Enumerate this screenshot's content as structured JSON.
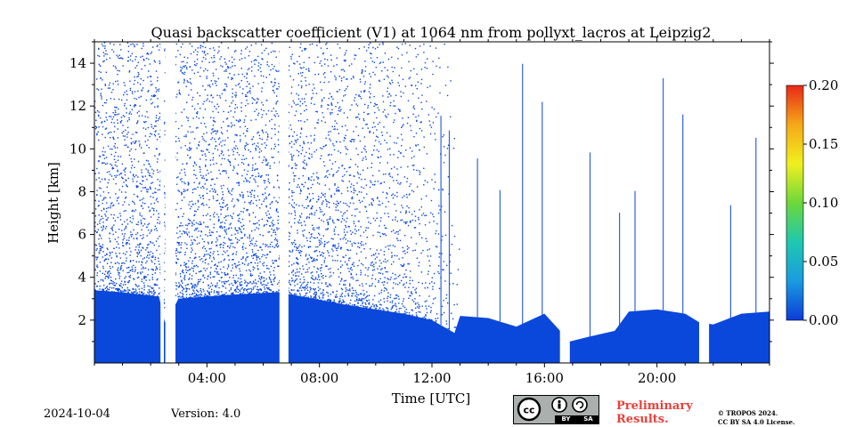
{
  "chart_data": {
    "type": "heatmap",
    "title": "Quasi backscatter coefficient (V1) at 1064 nm from pollyxt_lacros at Leipzig2",
    "xlabel": "Time [UTC]",
    "ylabel": "Height [km]",
    "xlim": [
      0,
      24
    ],
    "ylim": [
      0,
      15
    ],
    "x_ticks": [
      4,
      8,
      12,
      16,
      20
    ],
    "x_tick_labels": [
      "04:00",
      "08:00",
      "12:00",
      "16:00",
      "20:00"
    ],
    "y_ticks": [
      2,
      4,
      6,
      8,
      10,
      12,
      14
    ],
    "y_tick_labels": [
      "2",
      "4",
      "6",
      "8",
      "10",
      "12",
      "14"
    ],
    "colorbar": {
      "range": [
        0.0,
        0.2
      ],
      "ticks": [
        0.0,
        0.05,
        0.1,
        0.15,
        0.2
      ],
      "tick_labels": [
        "0.00",
        "0.05",
        "0.10",
        "0.15",
        "0.20"
      ],
      "colormap": [
        "#0a3cd8",
        "#1a9be0",
        "#1ec8b0",
        "#6cd83a",
        "#f0f01e",
        "#f5a818",
        "#e82818"
      ]
    },
    "signal_color": "#0a48dc",
    "gaps": [
      {
        "t0": 2.35,
        "t1": 2.47
      },
      {
        "t0": 2.52,
        "t1": 2.88
      },
      {
        "t0": 6.58,
        "t1": 6.9
      },
      {
        "t0": 16.55,
        "t1": 16.9
      },
      {
        "t0": 21.5,
        "t1": 21.85
      }
    ],
    "layer_top_km": [
      [
        0.0,
        3.4
      ],
      [
        1.0,
        3.3
      ],
      [
        2.3,
        3.1
      ],
      [
        2.5,
        1.9
      ],
      [
        3.0,
        3.0
      ],
      [
        5.0,
        3.2
      ],
      [
        6.5,
        3.3
      ],
      [
        7.0,
        3.2
      ],
      [
        9.0,
        2.7
      ],
      [
        10.0,
        2.5
      ],
      [
        11.0,
        2.3
      ],
      [
        12.0,
        2.0
      ],
      [
        12.8,
        1.4
      ],
      [
        13.0,
        2.2
      ],
      [
        14.0,
        2.1
      ],
      [
        15.0,
        1.7
      ],
      [
        16.0,
        2.3
      ],
      [
        16.9,
        1.0
      ],
      [
        17.5,
        1.2
      ],
      [
        18.5,
        1.5
      ],
      [
        19.0,
        2.4
      ],
      [
        20.0,
        2.5
      ],
      [
        21.0,
        2.3
      ],
      [
        21.5,
        1.9
      ],
      [
        22.0,
        1.8
      ],
      [
        23.0,
        2.3
      ],
      [
        24.0,
        2.4
      ]
    ],
    "noise_top_km": [
      [
        0.0,
        15.0
      ],
      [
        12.5,
        15.0
      ],
      [
        13.0,
        8.5
      ],
      [
        14.0,
        6.0
      ],
      [
        16.0,
        5.0
      ],
      [
        18.0,
        6.0
      ],
      [
        20.0,
        5.0
      ],
      [
        22.0,
        6.0
      ],
      [
        24.0,
        6.0
      ]
    ],
    "noise_density": [
      [
        0.0,
        0.22
      ],
      [
        5.0,
        0.22
      ],
      [
        8.0,
        0.2
      ],
      [
        11.0,
        0.14
      ],
      [
        12.5,
        0.05
      ],
      [
        13.0,
        0.0
      ],
      [
        24.0,
        0.0
      ]
    ],
    "streak_times": [
      12.3,
      12.6,
      13.6,
      14.4,
      15.2,
      15.9,
      17.6,
      18.65,
      19.2,
      20.2,
      20.9,
      22.6,
      23.5
    ]
  },
  "footer": {
    "date": "2024-10-04",
    "version": "Version: 4.0",
    "preliminary_line1": "Preliminary",
    "preliminary_line2": "Results.",
    "copyright_line1": "© TROPOS 2024.",
    "copyright_line2": "CC BY SA 4.0 License.",
    "cc_label": "cc",
    "cc_by": "BY",
    "cc_sa": "SA"
  }
}
